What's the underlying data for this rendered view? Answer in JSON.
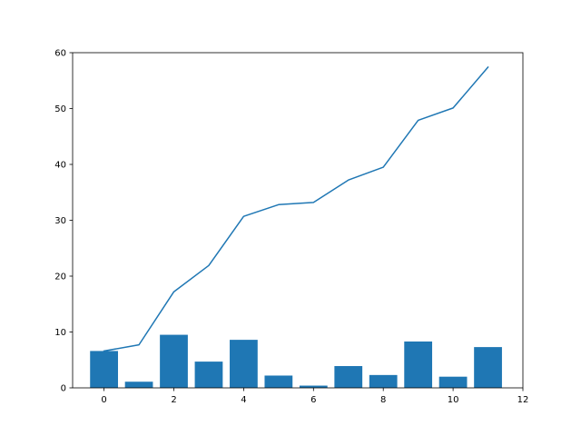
{
  "chart_data": {
    "type": "bar",
    "title": "",
    "xlabel": "",
    "ylabel": "",
    "xlim": [
      -0.9,
      12
    ],
    "ylim": [
      0,
      60
    ],
    "xticks": [
      0,
      2,
      4,
      6,
      8,
      10,
      12
    ],
    "yticks": [
      0,
      10,
      20,
      30,
      40,
      50,
      60
    ],
    "xtick_labels": [
      "0",
      "2",
      "4",
      "6",
      "8",
      "10",
      "12"
    ],
    "ytick_labels": [
      "0",
      "10",
      "20",
      "30",
      "40",
      "50",
      "60"
    ],
    "grid": false,
    "legend": "none",
    "x": [
      0,
      1,
      2,
      3,
      4,
      5,
      6,
      7,
      8,
      9,
      10,
      11
    ],
    "series": [
      {
        "type": "bar",
        "values": [
          6.6,
          1.1,
          9.5,
          4.7,
          8.6,
          2.2,
          0.4,
          3.9,
          2.3,
          8.3,
          2.0,
          7.3
        ],
        "color": "#1f77b4"
      },
      {
        "type": "line",
        "values": [
          6.6,
          7.7,
          17.2,
          21.9,
          30.7,
          32.8,
          33.2,
          37.2,
          39.5,
          47.9,
          50.1,
          57.4
        ],
        "color": "#1f77b4"
      }
    ]
  }
}
